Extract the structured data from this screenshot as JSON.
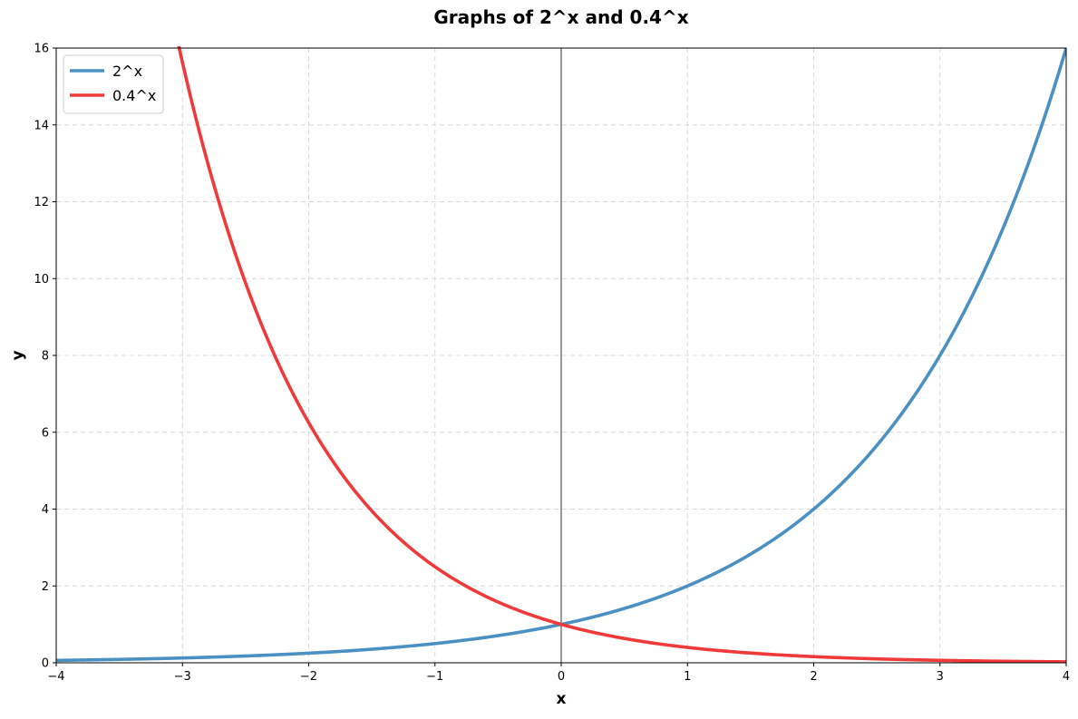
{
  "chart_data": {
    "type": "line",
    "title": "Graphs of 2^x and 0.4^x",
    "xlabel": "x",
    "ylabel": "y",
    "xlim": [
      -4,
      4
    ],
    "ylim": [
      0,
      16
    ],
    "x_ticks": [
      -4,
      -3,
      -2,
      -1,
      0,
      1,
      2,
      3,
      4
    ],
    "y_ticks": [
      0,
      2,
      4,
      6,
      8,
      10,
      12,
      14,
      16
    ],
    "grid": true,
    "legend_position": "top-left",
    "series": [
      {
        "name": "2^x",
        "color": "#4a90c2",
        "function": "2^x",
        "x": [
          -4,
          -3.5,
          -3,
          -2.5,
          -2,
          -1.5,
          -1,
          -0.5,
          0,
          0.5,
          1,
          1.5,
          2,
          2.5,
          3,
          3.5,
          4
        ],
        "values": [
          0.0625,
          0.088,
          0.125,
          0.177,
          0.25,
          0.354,
          0.5,
          0.707,
          1,
          1.414,
          2,
          2.828,
          4,
          5.657,
          8,
          11.314,
          16
        ]
      },
      {
        "name": "0.4^x",
        "color": "#f03a3a",
        "function": "0.4^x",
        "x": [
          -3,
          -2.5,
          -2,
          -1.5,
          -1,
          -0.5,
          0,
          0.5,
          1,
          1.5,
          2,
          2.5,
          3,
          3.5,
          4
        ],
        "values": [
          15.625,
          9.882,
          6.25,
          3.953,
          2.5,
          1.581,
          1,
          0.632,
          0.4,
          0.253,
          0.16,
          0.101,
          0.064,
          0.04,
          0.026
        ]
      }
    ]
  }
}
